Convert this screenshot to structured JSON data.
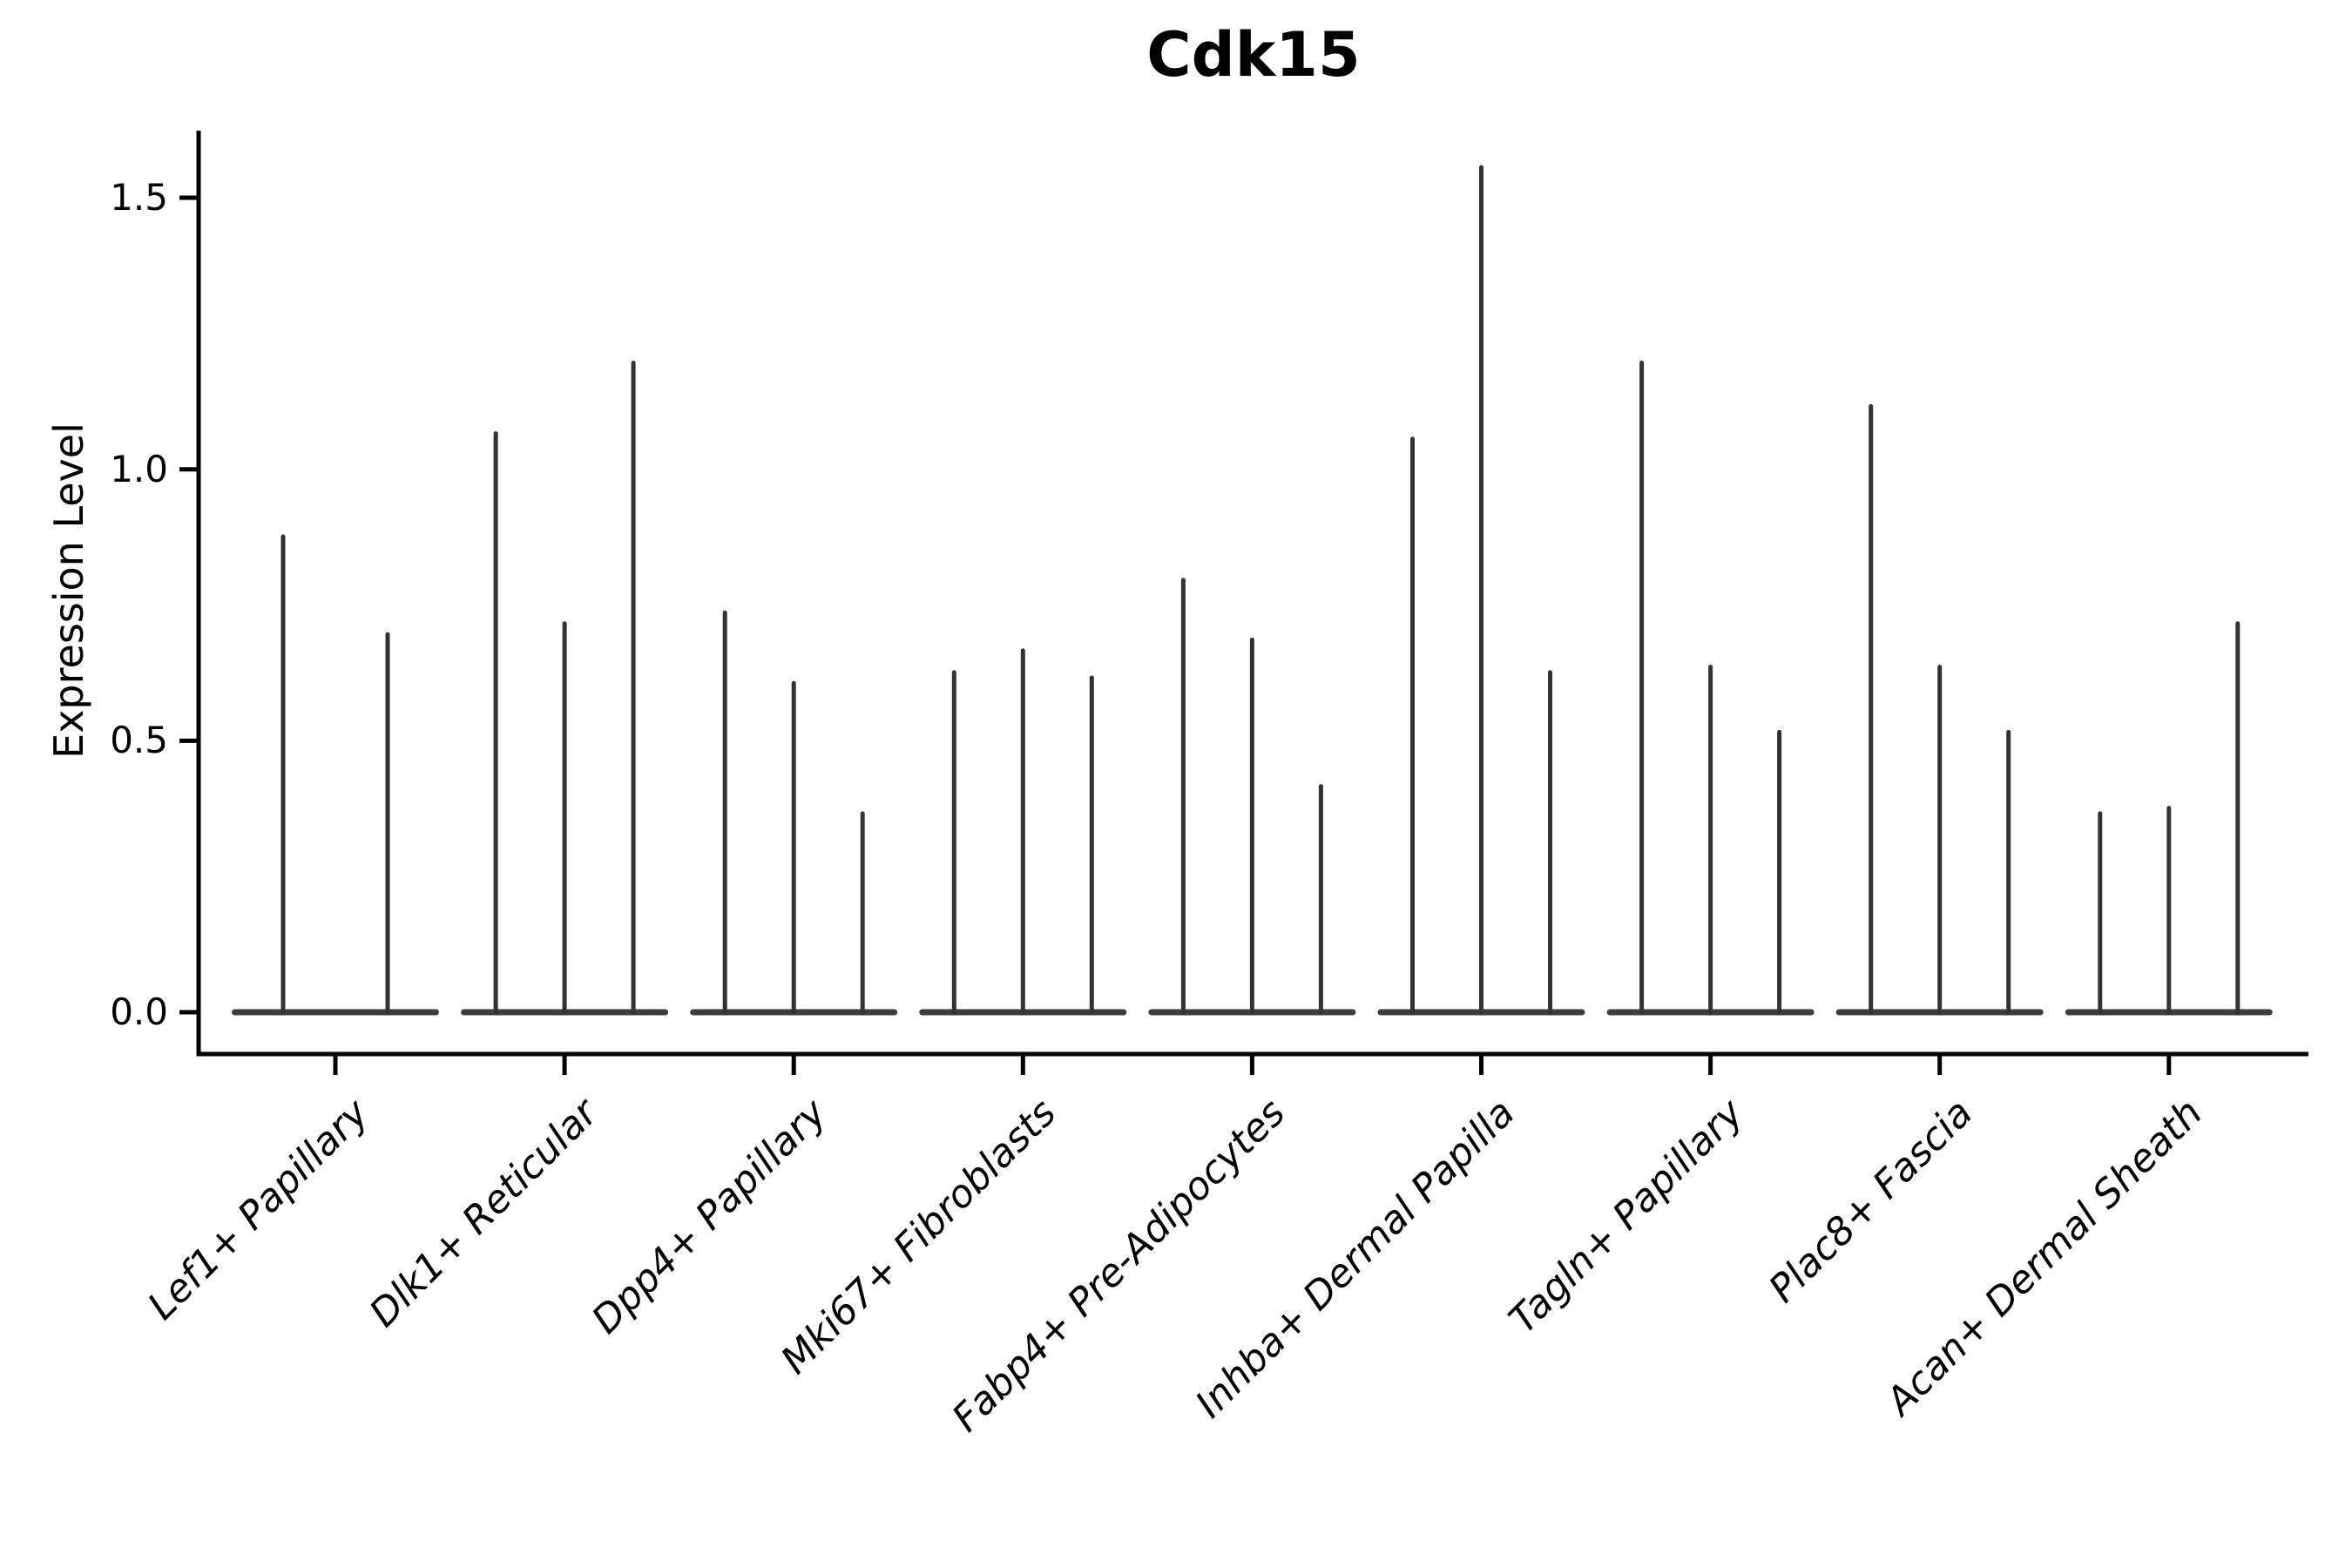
{
  "chart_data": {
    "type": "violin",
    "title": "Cdk15",
    "ylabel": "Expression Level",
    "xlabel": "",
    "categories": [
      "Lef1+ Papillary",
      "Dlk1+ Reticular",
      "Dpp4+ Papillary",
      "Mki67+ Fibroblasts",
      "Fabp4+ Pre-Adipocytes",
      "Inhba+ Dermal Papilla",
      "Tagln+ Papillary",
      "Plac8+ Fascia",
      "Acan+ Dermal Sheath"
    ],
    "groups": [
      {
        "label": "Lef1+ Papillary",
        "violin_max_heights": [
          0.88,
          0.7
        ]
      },
      {
        "label": "Dlk1+ Reticular",
        "violin_max_heights": [
          1.07,
          0.72,
          1.2
        ]
      },
      {
        "label": "Dpp4+ Papillary",
        "violin_max_heights": [
          0.74,
          0.61,
          0.37
        ]
      },
      {
        "label": "Mki67+ Fibroblasts",
        "violin_max_heights": [
          0.63,
          0.67,
          0.62
        ]
      },
      {
        "label": "Fabp4+ Pre-Adipocytes",
        "violin_max_heights": [
          0.8,
          0.69,
          0.42
        ]
      },
      {
        "label": "Inhba+ Dermal Papilla",
        "violin_max_heights": [
          1.06,
          1.56,
          0.63
        ]
      },
      {
        "label": "Tagln+ Papillary",
        "violin_max_heights": [
          1.2,
          0.64,
          0.52
        ]
      },
      {
        "label": "Plac8+ Fascia",
        "violin_max_heights": [
          1.12,
          0.64,
          0.52
        ]
      },
      {
        "label": "Acan+ Dermal Sheath",
        "violin_max_heights": [
          0.37,
          0.38,
          0.72
        ]
      }
    ],
    "ytick_labels": [
      "0.0",
      "0.5",
      "1.0",
      "1.5"
    ],
    "ytick_values": [
      0.0,
      0.5,
      1.0,
      1.5
    ],
    "ylim": [
      0,
      1.62
    ],
    "grid": false,
    "legend": null,
    "colors": {
      "violin": "#333333",
      "axis": "#000000",
      "text": "#000000",
      "background": "#ffffff"
    }
  }
}
